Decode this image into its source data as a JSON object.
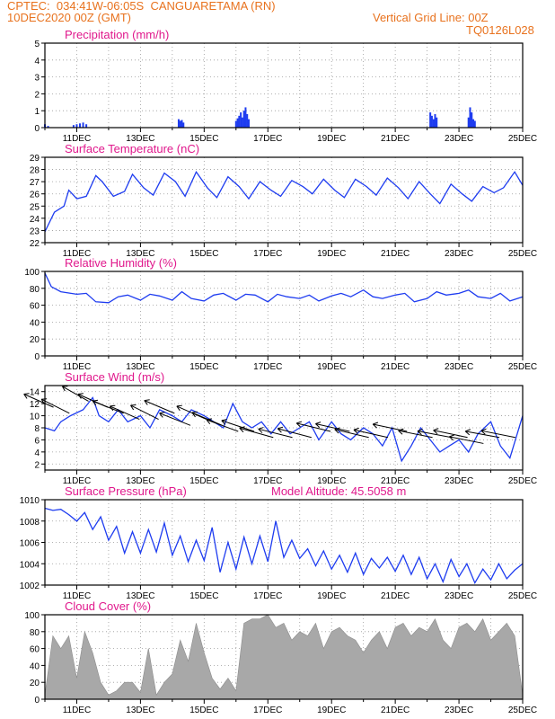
{
  "header": {
    "line1": "CPTEC:  034:41W-06:05S  CANGUARETAMA (RN)",
    "line2": "10DEC2020 00Z (GMT)",
    "grid_note": "Vertical Grid Line: 00Z",
    "code": "TQ0126L028"
  },
  "dates": [
    "11DEC",
    "13DEC",
    "15DEC",
    "17DEC",
    "19DEC",
    "21DEC",
    "23DEC",
    "25DEC"
  ],
  "colors": {
    "line": "#1e3cf0",
    "bar": "#1e3cf0",
    "cloud": "#a8a8a8",
    "title": "#e0188c",
    "header": "#e8721e"
  },
  "chart_data": [
    {
      "type": "bar",
      "title": "Precipitation (mm/h)",
      "ylim": [
        0,
        5
      ],
      "yticks": [
        0,
        1,
        2,
        3,
        4,
        5
      ],
      "x_range_days": [
        10,
        25
      ],
      "x": [
        10.0,
        10.1,
        10.9,
        11.0,
        11.1,
        11.2,
        11.3,
        14.2,
        14.25,
        14.3,
        14.35,
        16.0,
        16.05,
        16.1,
        16.15,
        16.2,
        16.25,
        16.3,
        16.35,
        16.4,
        22.1,
        22.15,
        22.2,
        22.25,
        22.3,
        23.3,
        23.35,
        23.4,
        23.45,
        23.5
      ],
      "values": [
        0.2,
        0.1,
        0.15,
        0.2,
        0.25,
        0.3,
        0.2,
        0.5,
        0.4,
        0.45,
        0.3,
        0.4,
        0.55,
        0.7,
        0.9,
        0.6,
        1.0,
        1.2,
        0.8,
        0.5,
        0.9,
        0.7,
        0.5,
        0.8,
        0.6,
        0.6,
        1.2,
        0.9,
        0.5,
        0.4
      ]
    },
    {
      "type": "line",
      "title": "Surface Temperature (nC)",
      "ylim": [
        22,
        29
      ],
      "yticks": [
        22,
        23,
        24,
        25,
        26,
        27,
        28,
        29
      ],
      "x_range_days": [
        10,
        25
      ],
      "x": [
        10.0,
        10.3,
        10.6,
        10.75,
        11.0,
        11.3,
        11.6,
        11.8,
        12.15,
        12.5,
        12.75,
        13.1,
        13.4,
        13.75,
        14.1,
        14.4,
        14.75,
        15.1,
        15.4,
        15.75,
        16.1,
        16.4,
        16.75,
        17.1,
        17.4,
        17.75,
        18.1,
        18.4,
        18.75,
        19.1,
        19.4,
        19.75,
        20.1,
        20.4,
        20.75,
        21.1,
        21.4,
        21.75,
        22.1,
        22.4,
        22.75,
        23.1,
        23.4,
        23.75,
        24.1,
        24.4,
        24.75,
        25.0
      ],
      "series": [
        {
          "values": [
            22.9,
            24.5,
            25.0,
            26.3,
            25.6,
            25.8,
            27.5,
            27.0,
            25.8,
            26.2,
            27.6,
            26.5,
            25.9,
            27.7,
            27.0,
            25.8,
            27.8,
            26.5,
            25.7,
            27.4,
            26.6,
            25.6,
            27.0,
            26.3,
            25.8,
            27.1,
            26.6,
            26.0,
            27.2,
            26.3,
            25.7,
            27.2,
            26.6,
            25.9,
            27.3,
            26.5,
            25.6,
            27.0,
            26.0,
            25.2,
            26.8,
            26.0,
            25.4,
            26.6,
            26.1,
            26.5,
            27.8,
            26.7
          ]
        }
      ]
    },
    {
      "type": "line",
      "title": "Relative Humidity (%)",
      "ylim": [
        0,
        100
      ],
      "yticks": [
        0,
        20,
        40,
        60,
        80,
        100
      ],
      "x_range_days": [
        10,
        25
      ],
      "x": [
        10.0,
        10.2,
        10.5,
        11.0,
        11.3,
        11.6,
        12.0,
        12.3,
        12.6,
        13.0,
        13.3,
        13.6,
        14.0,
        14.3,
        14.6,
        15.0,
        15.3,
        15.6,
        16.0,
        16.3,
        16.6,
        17.0,
        17.3,
        17.6,
        18.0,
        18.3,
        18.6,
        19.0,
        19.3,
        19.6,
        20.0,
        20.3,
        20.6,
        21.0,
        21.3,
        21.6,
        22.0,
        22.3,
        22.6,
        23.0,
        23.3,
        23.6,
        24.0,
        24.3,
        24.6,
        25.0
      ],
      "series": [
        {
          "values": [
            98,
            82,
            76,
            73,
            74,
            64,
            63,
            70,
            72,
            66,
            73,
            71,
            66,
            76,
            68,
            65,
            72,
            74,
            66,
            73,
            72,
            64,
            73,
            70,
            68,
            72,
            65,
            71,
            74,
            70,
            78,
            70,
            68,
            72,
            74,
            64,
            68,
            76,
            72,
            74,
            78,
            70,
            68,
            74,
            65,
            70
          ]
        }
      ]
    },
    {
      "type": "line",
      "title": "Surface Wind (m/s)",
      "ylim": [
        1,
        15
      ],
      "yticks": [
        2,
        4,
        6,
        8,
        10,
        12,
        14
      ],
      "x_range_days": [
        10,
        25
      ],
      "x": [
        10.0,
        10.3,
        10.5,
        10.8,
        11.2,
        11.5,
        11.7,
        12.0,
        12.3,
        12.6,
        13.0,
        13.3,
        13.6,
        14.0,
        14.3,
        14.6,
        15.0,
        15.3,
        15.6,
        15.9,
        16.2,
        16.5,
        16.8,
        17.1,
        17.4,
        17.7,
        18.0,
        18.3,
        18.6,
        19.0,
        19.3,
        19.6,
        20.0,
        20.3,
        20.6,
        20.9,
        21.2,
        21.5,
        21.8,
        22.1,
        22.4,
        22.7,
        23.0,
        23.3,
        23.6,
        24.0,
        24.3,
        24.6,
        25.0
      ],
      "series": [
        {
          "values": [
            8,
            7.5,
            9,
            10,
            11,
            13,
            10,
            9,
            11,
            9,
            10,
            8,
            11,
            10,
            9,
            11,
            10,
            9,
            8,
            12,
            9,
            8,
            9,
            7,
            9,
            7,
            8,
            9,
            6,
            9,
            7,
            6,
            8,
            7,
            5,
            8,
            2.5,
            5,
            8,
            6,
            4,
            5,
            6,
            4,
            7,
            9,
            5,
            3,
            10
          ]
        }
      ],
      "barbs": {
        "x": [
          10.1,
          10.6,
          11.2,
          11.8,
          12.3,
          12.8,
          13.4,
          13.9,
          14.4,
          14.9,
          15.4,
          15.9,
          16.4,
          17.0,
          17.6,
          18.2,
          18.8,
          19.4,
          20.0,
          20.6,
          21.2,
          22.0,
          22.6,
          23.1,
          23.6,
          24.1,
          24.6
        ],
        "speed": [
          12,
          11,
          13,
          12,
          11,
          10,
          10,
          11,
          9,
          10,
          9,
          8,
          8,
          7,
          7,
          7,
          8,
          8,
          7,
          7,
          8,
          7,
          7,
          7,
          6,
          7,
          7
        ],
        "from_deg": [
          120,
          125,
          130,
          120,
          115,
          120,
          125,
          118,
          115,
          120,
          118,
          112,
          108,
          100,
          96,
          98,
          95,
          92,
          94,
          92,
          90,
          88,
          86,
          90,
          88,
          85,
          88
        ]
      }
    },
    {
      "type": "line",
      "title": "Surface Pressure (hPa)",
      "annotation": "Model Altitude: 45.5058 m",
      "ylim": [
        1002,
        1010
      ],
      "yticks": [
        1002,
        1004,
        1006,
        1008,
        1010
      ],
      "x_range_days": [
        10,
        25
      ],
      "x": [
        10.0,
        10.25,
        10.5,
        10.75,
        11.0,
        11.25,
        11.5,
        11.75,
        12.0,
        12.25,
        12.5,
        12.75,
        13.0,
        13.25,
        13.5,
        13.75,
        14.0,
        14.25,
        14.5,
        14.75,
        15.0,
        15.25,
        15.5,
        15.75,
        16.0,
        16.25,
        16.5,
        16.75,
        17.0,
        17.25,
        17.5,
        17.75,
        18.0,
        18.25,
        18.5,
        18.75,
        19.0,
        19.25,
        19.5,
        19.75,
        20.0,
        20.25,
        20.5,
        20.75,
        21.0,
        21.25,
        21.5,
        21.75,
        22.0,
        22.25,
        22.5,
        22.75,
        23.0,
        23.25,
        23.5,
        23.75,
        24.0,
        24.25,
        24.5,
        24.75,
        25.0
      ],
      "series": [
        {
          "values": [
            1009.2,
            1009.0,
            1009.1,
            1008.6,
            1008.0,
            1008.8,
            1007.2,
            1008.4,
            1006.2,
            1007.5,
            1005.0,
            1007.0,
            1005.0,
            1007.2,
            1005.1,
            1007.8,
            1004.8,
            1006.6,
            1004.2,
            1006.2,
            1004.3,
            1007.4,
            1003.2,
            1006.0,
            1003.5,
            1006.5,
            1004.0,
            1006.6,
            1004.2,
            1008.0,
            1004.6,
            1006.2,
            1004.5,
            1005.4,
            1003.8,
            1005.2,
            1003.5,
            1004.8,
            1003.2,
            1005.0,
            1003.0,
            1004.5,
            1003.6,
            1004.6,
            1003.3,
            1004.8,
            1003.0,
            1004.6,
            1002.6,
            1004.0,
            1002.3,
            1004.4,
            1002.8,
            1004.0,
            1002.2,
            1003.5,
            1002.5,
            1004.0,
            1002.6,
            1003.4,
            1004.0
          ]
        }
      ]
    },
    {
      "type": "area",
      "title": "Cloud Cover (%)",
      "ylim": [
        0,
        100
      ],
      "yticks": [
        0,
        20,
        40,
        60,
        80,
        100
      ],
      "x_range_days": [
        10,
        25
      ],
      "x": [
        10.0,
        10.25,
        10.5,
        10.75,
        11.0,
        11.25,
        11.5,
        11.75,
        12.0,
        12.25,
        12.5,
        12.75,
        13.0,
        13.25,
        13.5,
        13.75,
        14.0,
        14.25,
        14.5,
        14.75,
        15.0,
        15.25,
        15.5,
        15.75,
        16.0,
        16.25,
        16.5,
        16.75,
        17.0,
        17.25,
        17.5,
        17.75,
        18.0,
        18.25,
        18.5,
        18.75,
        19.0,
        19.25,
        19.5,
        19.75,
        20.0,
        20.25,
        20.5,
        20.75,
        21.0,
        21.25,
        21.5,
        21.75,
        22.0,
        22.25,
        22.5,
        22.75,
        23.0,
        23.25,
        23.5,
        23.75,
        24.0,
        24.25,
        24.5,
        24.75,
        25.0
      ],
      "series": [
        {
          "values": [
            5,
            75,
            60,
            75,
            25,
            80,
            55,
            20,
            5,
            10,
            20,
            20,
            8,
            60,
            5,
            20,
            30,
            70,
            45,
            90,
            55,
            25,
            12,
            25,
            10,
            90,
            95,
            95,
            100,
            85,
            90,
            70,
            80,
            75,
            90,
            60,
            80,
            85,
            75,
            70,
            55,
            70,
            80,
            60,
            85,
            90,
            75,
            85,
            80,
            95,
            70,
            60,
            85,
            90,
            80,
            95,
            70,
            80,
            90,
            75,
            5
          ]
        }
      ]
    }
  ]
}
